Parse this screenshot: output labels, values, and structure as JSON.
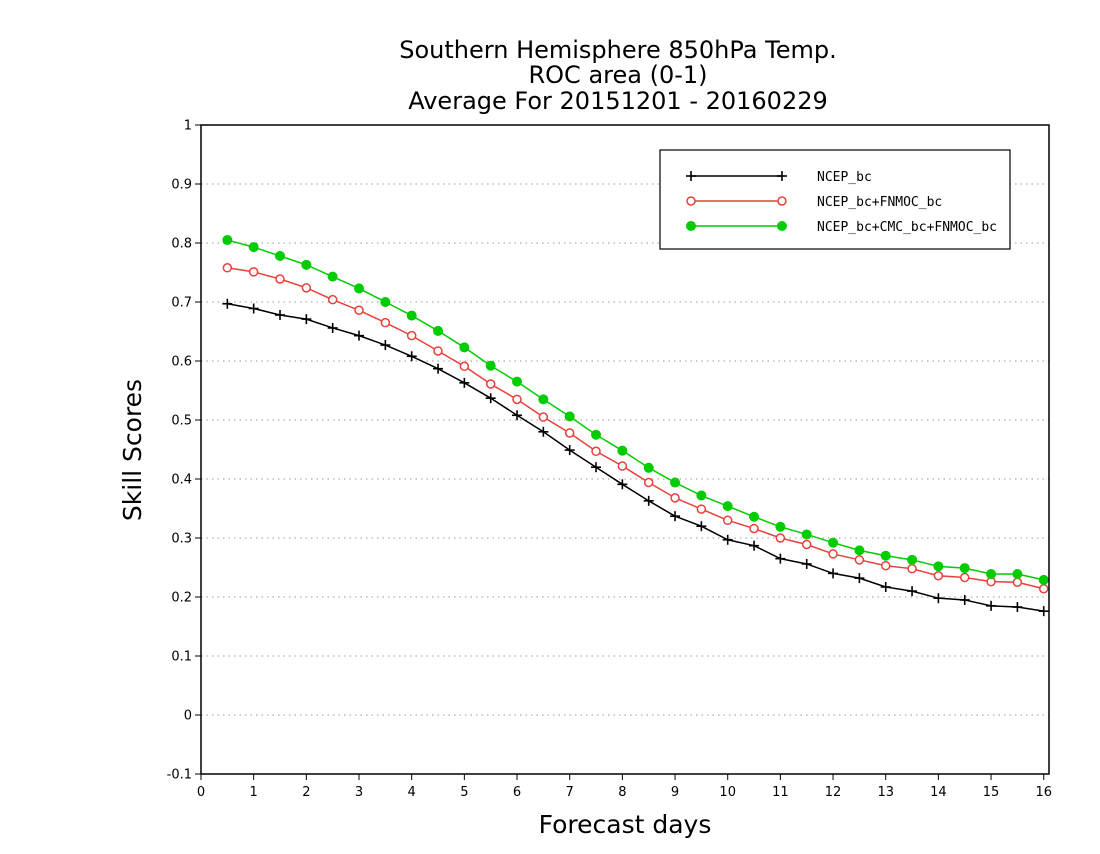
{
  "chart_data": {
    "type": "line",
    "title": "Southern Hemisphere 850hPa Temp.",
    "subtitle": "ROC area (0-1)",
    "subtitle2": "Average For 20151201 - 20160229",
    "xlabel": "Forecast days",
    "ylabel": "Skill Scores",
    "xlim": [
      0,
      16.1
    ],
    "ylim": [
      -0.1,
      1
    ],
    "xticks": [
      0,
      1,
      2,
      3,
      4,
      5,
      6,
      7,
      8,
      9,
      10,
      11,
      12,
      13,
      14,
      15,
      16
    ],
    "xtick_labels": [
      "0",
      "1",
      "2",
      "3",
      "4",
      "5",
      "6",
      "7",
      "8",
      "9",
      "10",
      "11",
      "12",
      "13",
      "14",
      "15",
      "16"
    ],
    "yticks": [
      -0.1,
      0,
      0.1,
      0.2,
      0.3,
      0.4,
      0.5,
      0.6,
      0.7,
      0.8,
      0.9,
      1
    ],
    "ytick_labels": [
      "-0.1",
      "0",
      "0.1",
      "0.2",
      "0.3",
      "0.4",
      "0.5",
      "0.6",
      "0.7",
      "0.8",
      "0.9",
      "1"
    ],
    "grid": true,
    "legend_position": "top-right",
    "x": [
      0.5,
      1,
      1.5,
      2,
      2.5,
      3,
      3.5,
      4,
      4.5,
      5,
      5.5,
      6,
      6.5,
      7,
      7.5,
      8,
      8.5,
      9,
      9.5,
      10,
      10.5,
      11,
      11.5,
      12,
      12.5,
      13,
      13.5,
      14,
      14.5,
      15,
      15.5,
      16
    ],
    "series": [
      {
        "name": "NCEP_bc",
        "color": "#000000",
        "marker": "plus",
        "values": [
          0.697,
          0.689,
          0.678,
          0.671,
          0.656,
          0.643,
          0.627,
          0.608,
          0.587,
          0.563,
          0.537,
          0.508,
          0.48,
          0.449,
          0.42,
          0.391,
          0.363,
          0.337,
          0.32,
          0.297,
          0.287,
          0.265,
          0.256,
          0.24,
          0.232,
          0.217,
          0.21,
          0.198,
          0.195,
          0.185,
          0.183,
          0.176
        ]
      },
      {
        "name": "NCEP_bc+FNMOC_bc",
        "color": "#e8403a",
        "marker": "open-circle",
        "values": [
          0.758,
          0.751,
          0.739,
          0.724,
          0.704,
          0.686,
          0.665,
          0.643,
          0.617,
          0.591,
          0.561,
          0.535,
          0.505,
          0.478,
          0.447,
          0.422,
          0.394,
          0.368,
          0.349,
          0.33,
          0.316,
          0.3,
          0.289,
          0.273,
          0.263,
          0.253,
          0.248,
          0.236,
          0.233,
          0.226,
          0.225,
          0.214
        ]
      },
      {
        "name": "NCEP_bc+CMC_bc+FNMOC_bc",
        "color": "#00cc00",
        "marker": "filled-circle",
        "values": [
          0.805,
          0.793,
          0.778,
          0.763,
          0.743,
          0.723,
          0.7,
          0.677,
          0.651,
          0.623,
          0.592,
          0.565,
          0.535,
          0.506,
          0.475,
          0.448,
          0.419,
          0.394,
          0.372,
          0.354,
          0.336,
          0.319,
          0.306,
          0.292,
          0.279,
          0.27,
          0.263,
          0.252,
          0.249,
          0.239,
          0.239,
          0.229
        ]
      }
    ]
  }
}
